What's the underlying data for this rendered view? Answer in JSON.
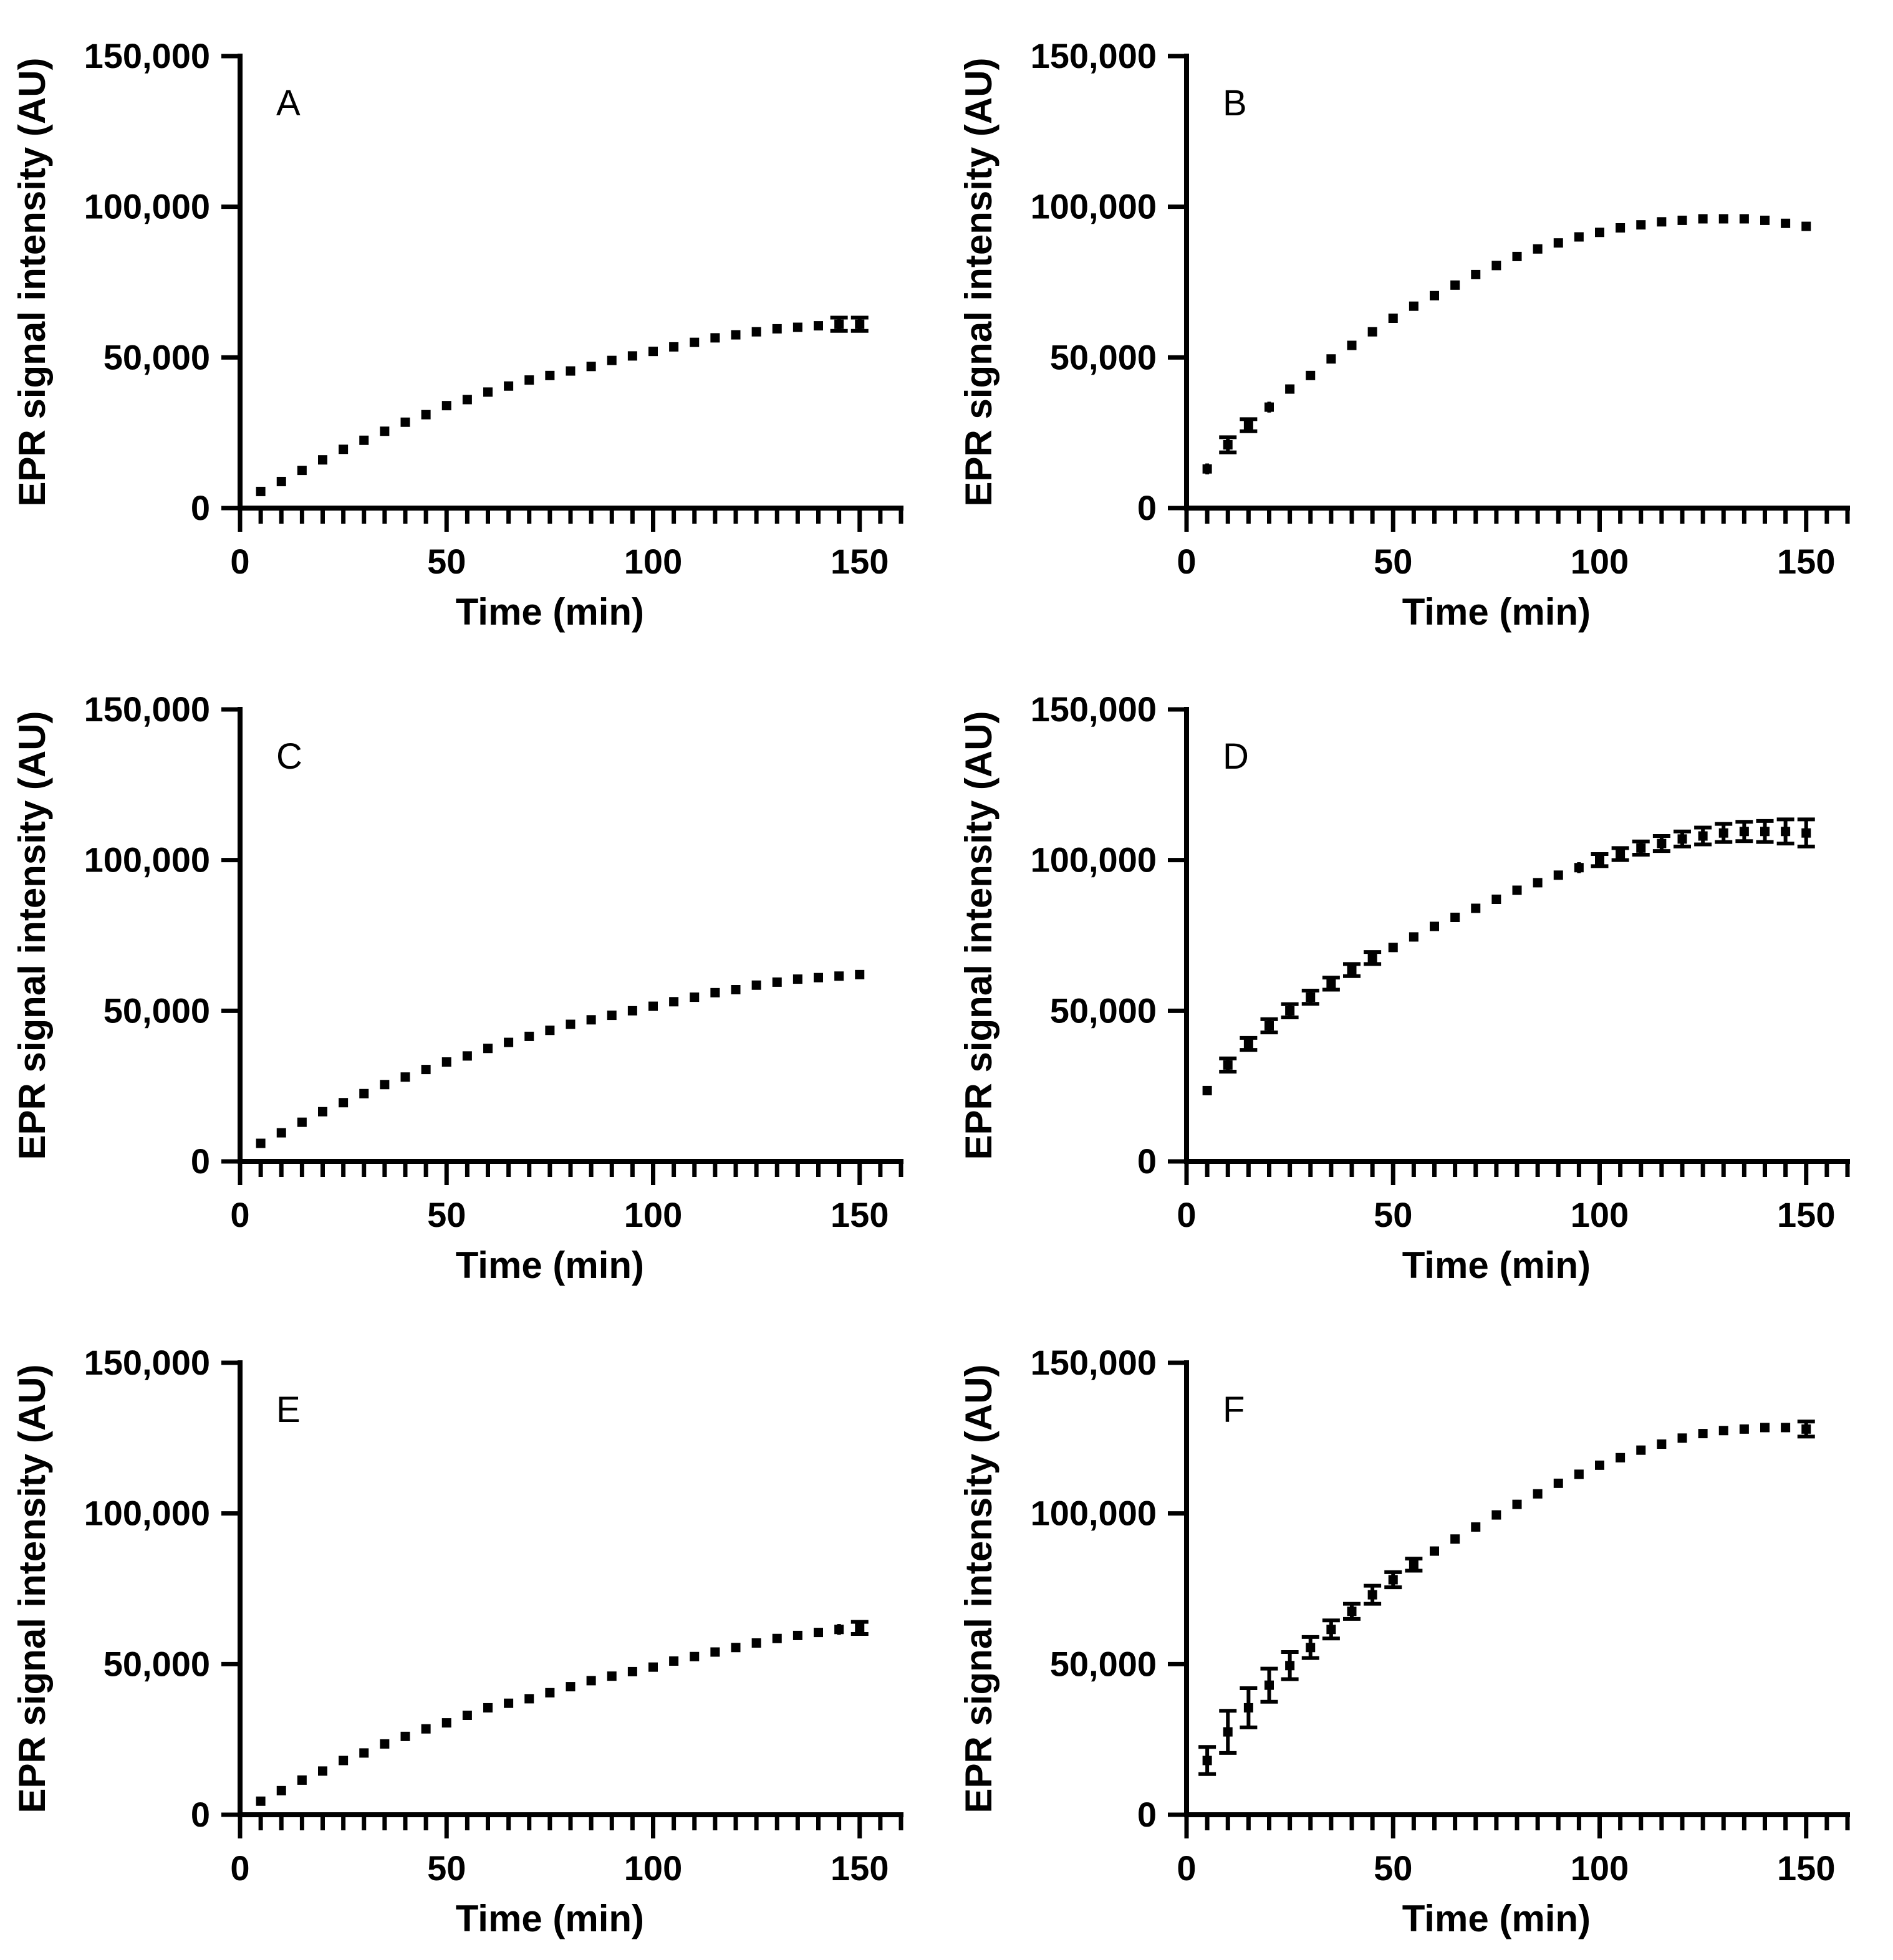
{
  "figure": {
    "background_color": "#ffffff",
    "axis_color": "#000000",
    "marker_color": "#000000",
    "marker_shape": "square"
  },
  "chart_data": [
    {
      "type": "scatter",
      "panel_label": "A",
      "xlabel": "Time (min)",
      "ylabel": "EPR signal intensity (AU)",
      "xlim": [
        0,
        160
      ],
      "ylim": [
        0,
        150000
      ],
      "xticks": [
        0,
        50,
        100,
        150
      ],
      "x_minor_step": 5,
      "yticks": [
        0,
        50000,
        100000,
        150000
      ],
      "grid": false,
      "legend": null,
      "x": [
        5,
        10,
        15,
        20,
        25,
        30,
        35,
        40,
        45,
        50,
        55,
        60,
        65,
        70,
        75,
        80,
        85,
        90,
        95,
        100,
        105,
        110,
        115,
        120,
        125,
        130,
        135,
        140,
        145,
        150
      ],
      "y": [
        5500,
        8800,
        12500,
        16000,
        19500,
        22500,
        25500,
        28500,
        31000,
        34000,
        36000,
        38500,
        40500,
        42500,
        44000,
        45500,
        47000,
        49000,
        50500,
        52000,
        53500,
        55000,
        56500,
        57500,
        58500,
        59500,
        60000,
        60500,
        61000,
        61000
      ],
      "yerr": [
        0,
        0,
        0,
        0,
        0,
        0,
        0,
        0,
        0,
        0,
        0,
        0,
        0,
        0,
        0,
        0,
        0,
        0,
        0,
        0,
        0,
        0,
        0,
        0,
        0,
        0,
        0,
        0,
        2200,
        2200
      ]
    },
    {
      "type": "scatter",
      "panel_label": "B",
      "xlabel": "Time (min)",
      "ylabel": "EPR signal intensity (AU)",
      "xlim": [
        0,
        160
      ],
      "ylim": [
        0,
        150000
      ],
      "xticks": [
        0,
        50,
        100,
        150
      ],
      "x_minor_step": 5,
      "yticks": [
        0,
        50000,
        100000,
        150000
      ],
      "grid": false,
      "legend": null,
      "x": [
        5,
        10,
        15,
        20,
        25,
        30,
        35,
        40,
        45,
        50,
        55,
        60,
        65,
        70,
        75,
        80,
        85,
        90,
        95,
        100,
        105,
        110,
        115,
        120,
        125,
        130,
        135,
        140,
        145,
        150
      ],
      "y": [
        13000,
        21000,
        27500,
        33500,
        39500,
        44000,
        49500,
        54000,
        58500,
        63000,
        67000,
        70500,
        74000,
        77500,
        80500,
        83500,
        86000,
        88000,
        90000,
        91500,
        93000,
        94000,
        95000,
        95500,
        96000,
        96000,
        96000,
        95500,
        94500,
        93500
      ],
      "yerr": [
        1800,
        2500,
        2000,
        1800,
        1500,
        1200,
        1200,
        1000,
        800,
        800,
        0,
        0,
        0,
        0,
        0,
        0,
        0,
        0,
        0,
        0,
        0,
        0,
        0,
        0,
        0,
        0,
        0,
        0,
        0,
        0
      ]
    },
    {
      "type": "scatter",
      "panel_label": "C",
      "xlabel": "Time (min)",
      "ylabel": "EPR signal intensity (AU)",
      "xlim": [
        0,
        160
      ],
      "ylim": [
        0,
        150000
      ],
      "xticks": [
        0,
        50,
        100,
        150
      ],
      "x_minor_step": 5,
      "yticks": [
        0,
        50000,
        100000,
        150000
      ],
      "grid": false,
      "legend": null,
      "x": [
        5,
        10,
        15,
        20,
        25,
        30,
        35,
        40,
        45,
        50,
        55,
        60,
        65,
        70,
        75,
        80,
        85,
        90,
        95,
        100,
        105,
        110,
        115,
        120,
        125,
        130,
        135,
        140,
        145,
        150
      ],
      "y": [
        6000,
        9500,
        13000,
        16500,
        19500,
        22500,
        25500,
        28000,
        30500,
        33000,
        35000,
        37500,
        39500,
        41500,
        43500,
        45500,
        47000,
        48500,
        50000,
        51500,
        53000,
        54500,
        56000,
        57000,
        58500,
        59500,
        60500,
        61000,
        61500,
        62000
      ],
      "yerr": [
        0,
        0,
        0,
        0,
        0,
        0,
        0,
        0,
        0,
        0,
        0,
        0,
        0,
        0,
        0,
        0,
        0,
        0,
        0,
        0,
        0,
        0,
        0,
        0,
        0,
        0,
        0,
        0,
        0,
        0
      ]
    },
    {
      "type": "scatter",
      "panel_label": "D",
      "xlabel": "Time (min)",
      "ylabel": "EPR signal intensity (AU)",
      "xlim": [
        0,
        160
      ],
      "ylim": [
        0,
        150000
      ],
      "xticks": [
        0,
        50,
        100,
        150
      ],
      "x_minor_step": 5,
      "yticks": [
        0,
        50000,
        100000,
        150000
      ],
      "grid": false,
      "legend": null,
      "x": [
        5,
        10,
        15,
        20,
        25,
        30,
        35,
        40,
        45,
        50,
        55,
        60,
        65,
        70,
        75,
        80,
        85,
        90,
        95,
        100,
        105,
        110,
        115,
        120,
        125,
        130,
        135,
        140,
        145,
        150
      ],
      "y": [
        23500,
        32000,
        39000,
        45000,
        50000,
        54500,
        59000,
        63500,
        67500,
        71000,
        74500,
        78000,
        81000,
        84000,
        87000,
        90000,
        92500,
        95000,
        97500,
        100000,
        102000,
        104000,
        105500,
        107000,
        108000,
        109000,
        109500,
        109500,
        109500,
        109000
      ],
      "yerr": [
        1500,
        2200,
        2000,
        2200,
        2200,
        2200,
        2000,
        2000,
        2000,
        1500,
        1500,
        1500,
        1500,
        1500,
        1500,
        1500,
        1500,
        1500,
        1800,
        2000,
        2000,
        2200,
        2500,
        2500,
        2800,
        3000,
        3200,
        3500,
        4000,
        4500
      ]
    },
    {
      "type": "scatter",
      "panel_label": "E",
      "xlabel": "Time (min)",
      "ylabel": "EPR signal intensity (AU)",
      "xlim": [
        0,
        160
      ],
      "ylim": [
        0,
        150000
      ],
      "xticks": [
        0,
        50,
        100,
        150
      ],
      "x_minor_step": 5,
      "yticks": [
        0,
        50000,
        100000,
        150000
      ],
      "grid": false,
      "legend": null,
      "x": [
        5,
        10,
        15,
        20,
        25,
        30,
        35,
        40,
        45,
        50,
        55,
        60,
        65,
        70,
        75,
        80,
        85,
        90,
        95,
        100,
        105,
        110,
        115,
        120,
        125,
        130,
        135,
        140,
        145,
        150
      ],
      "y": [
        4500,
        8000,
        11500,
        14500,
        18000,
        20500,
        23500,
        26000,
        28500,
        30500,
        33000,
        35500,
        37000,
        38500,
        40500,
        42500,
        44500,
        46000,
        47500,
        49000,
        51000,
        52500,
        54000,
        55500,
        57000,
        58500,
        59500,
        60500,
        61500,
        62000
      ],
      "yerr": [
        0,
        0,
        0,
        0,
        0,
        0,
        0,
        0,
        0,
        0,
        0,
        0,
        0,
        0,
        0,
        0,
        0,
        0,
        0,
        0,
        0,
        0,
        0,
        0,
        0,
        0,
        0,
        0,
        1800,
        2000
      ]
    },
    {
      "type": "scatter",
      "panel_label": "F",
      "xlabel": "Time (min)",
      "ylabel": "EPR signal intensity (AU)",
      "xlim": [
        0,
        160
      ],
      "ylim": [
        0,
        150000
      ],
      "xticks": [
        0,
        50,
        100,
        150
      ],
      "x_minor_step": 5,
      "yticks": [
        0,
        50000,
        100000,
        150000
      ],
      "grid": false,
      "legend": null,
      "x": [
        5,
        10,
        15,
        20,
        25,
        30,
        35,
        40,
        45,
        50,
        55,
        60,
        65,
        70,
        75,
        80,
        85,
        90,
        95,
        100,
        105,
        110,
        115,
        120,
        125,
        130,
        135,
        140,
        145,
        150
      ],
      "y": [
        18000,
        27500,
        35500,
        43000,
        49500,
        55500,
        61500,
        67500,
        73000,
        78000,
        83000,
        87500,
        91500,
        95500,
        99500,
        103000,
        106500,
        110000,
        113000,
        116000,
        118500,
        121000,
        123000,
        125000,
        126500,
        127500,
        128000,
        128500,
        128500,
        128000
      ],
      "yerr": [
        4500,
        7000,
        6500,
        5500,
        4500,
        3500,
        3000,
        2500,
        3000,
        2500,
        2000,
        1500,
        1500,
        1500,
        1500,
        1500,
        1500,
        1500,
        1500,
        1500,
        1500,
        1500,
        1500,
        1500,
        1500,
        1500,
        1500,
        1500,
        1500,
        2500
      ]
    }
  ]
}
